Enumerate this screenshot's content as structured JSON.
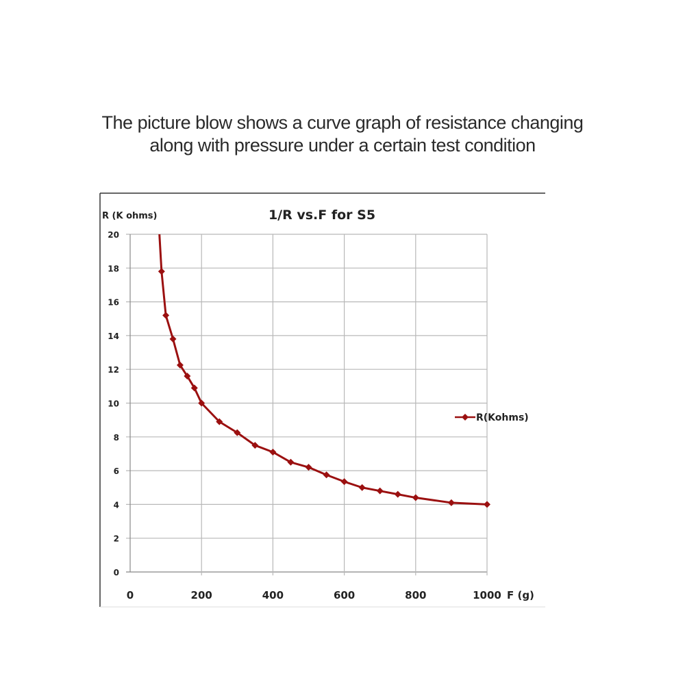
{
  "caption": {
    "line1": "The picture blow shows a curve graph of resistance changing",
    "line2": "along with pressure under a certain test condition"
  },
  "chart_data": {
    "type": "line",
    "title": "1/R vs.F for S5",
    "xlabel": "F (g)",
    "ylabel": "R (K ohms)",
    "xlim": [
      0,
      1000
    ],
    "ylim": [
      0,
      20
    ],
    "xticks": [
      "0",
      "200",
      "400",
      "600",
      "800",
      "1000"
    ],
    "yticks": [
      "0",
      "2",
      "4",
      "6",
      "8",
      "10",
      "12",
      "14",
      "16",
      "18",
      "20"
    ],
    "grid": true,
    "legend_position": "right",
    "line_start": {
      "x": 82,
      "y": 20
    },
    "series": [
      {
        "name": "R(Kohms)",
        "color": "#9b1010",
        "points": [
          {
            "x": 88,
            "y": 17.8
          },
          {
            "x": 100,
            "y": 15.2
          },
          {
            "x": 120,
            "y": 13.8
          },
          {
            "x": 140,
            "y": 12.25
          },
          {
            "x": 160,
            "y": 11.6
          },
          {
            "x": 180,
            "y": 10.9
          },
          {
            "x": 200,
            "y": 10.0
          },
          {
            "x": 250,
            "y": 8.9
          },
          {
            "x": 300,
            "y": 8.25
          },
          {
            "x": 350,
            "y": 7.5
          },
          {
            "x": 400,
            "y": 7.1
          },
          {
            "x": 450,
            "y": 6.5
          },
          {
            "x": 500,
            "y": 6.2
          },
          {
            "x": 550,
            "y": 5.75
          },
          {
            "x": 600,
            "y": 5.35
          },
          {
            "x": 650,
            "y": 5.0
          },
          {
            "x": 700,
            "y": 4.8
          },
          {
            "x": 750,
            "y": 4.6
          },
          {
            "x": 800,
            "y": 4.4
          },
          {
            "x": 900,
            "y": 4.1
          },
          {
            "x": 1000,
            "y": 4.0
          }
        ]
      }
    ]
  }
}
